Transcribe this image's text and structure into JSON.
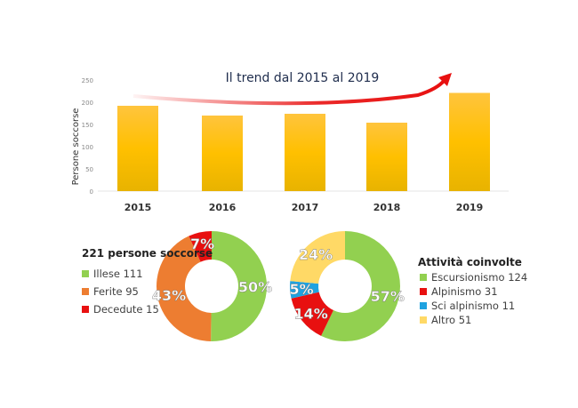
{
  "chart_data": [
    {
      "type": "bar",
      "title": "Il trend dal 2015 al 2019",
      "ylabel": "Persone soccorse",
      "xlabel": "",
      "categories": [
        "2015",
        "2016",
        "2017",
        "2018",
        "2019"
      ],
      "values": [
        192,
        170,
        174,
        154,
        221
      ],
      "ylim": [
        0,
        250
      ],
      "yticks": [
        0,
        50,
        100,
        150,
        200,
        250
      ],
      "grid": false,
      "bar_color": "#FFC000",
      "trend_arrow_color": "#E81010"
    },
    {
      "type": "pie",
      "variant": "donut",
      "title": "221 persone soccorse",
      "legend": "left",
      "slices": [
        {
          "label": "Illese 111",
          "value": 111,
          "pct": "50%",
          "color": "#92D050"
        },
        {
          "label": "Ferite 95",
          "value": 95,
          "pct": "43%",
          "color": "#ED7D31"
        },
        {
          "label": "Decedute 15",
          "value": 15,
          "pct": "7%",
          "color": "#E81010"
        }
      ]
    },
    {
      "type": "pie",
      "variant": "donut",
      "title": "Attività coinvolte",
      "legend": "right",
      "slices": [
        {
          "label": "Escursionismo 124",
          "value": 124,
          "pct": "57%",
          "color": "#92D050"
        },
        {
          "label": "Alpinismo 31",
          "value": 31,
          "pct": "14%",
          "color": "#E81010"
        },
        {
          "label": "Sci alpinismo 11",
          "value": 11,
          "pct": "5%",
          "color": "#1FA2E0"
        },
        {
          "label": "Altro 51",
          "value": 51,
          "pct": "24%",
          "color": "#FFD966"
        }
      ]
    }
  ]
}
